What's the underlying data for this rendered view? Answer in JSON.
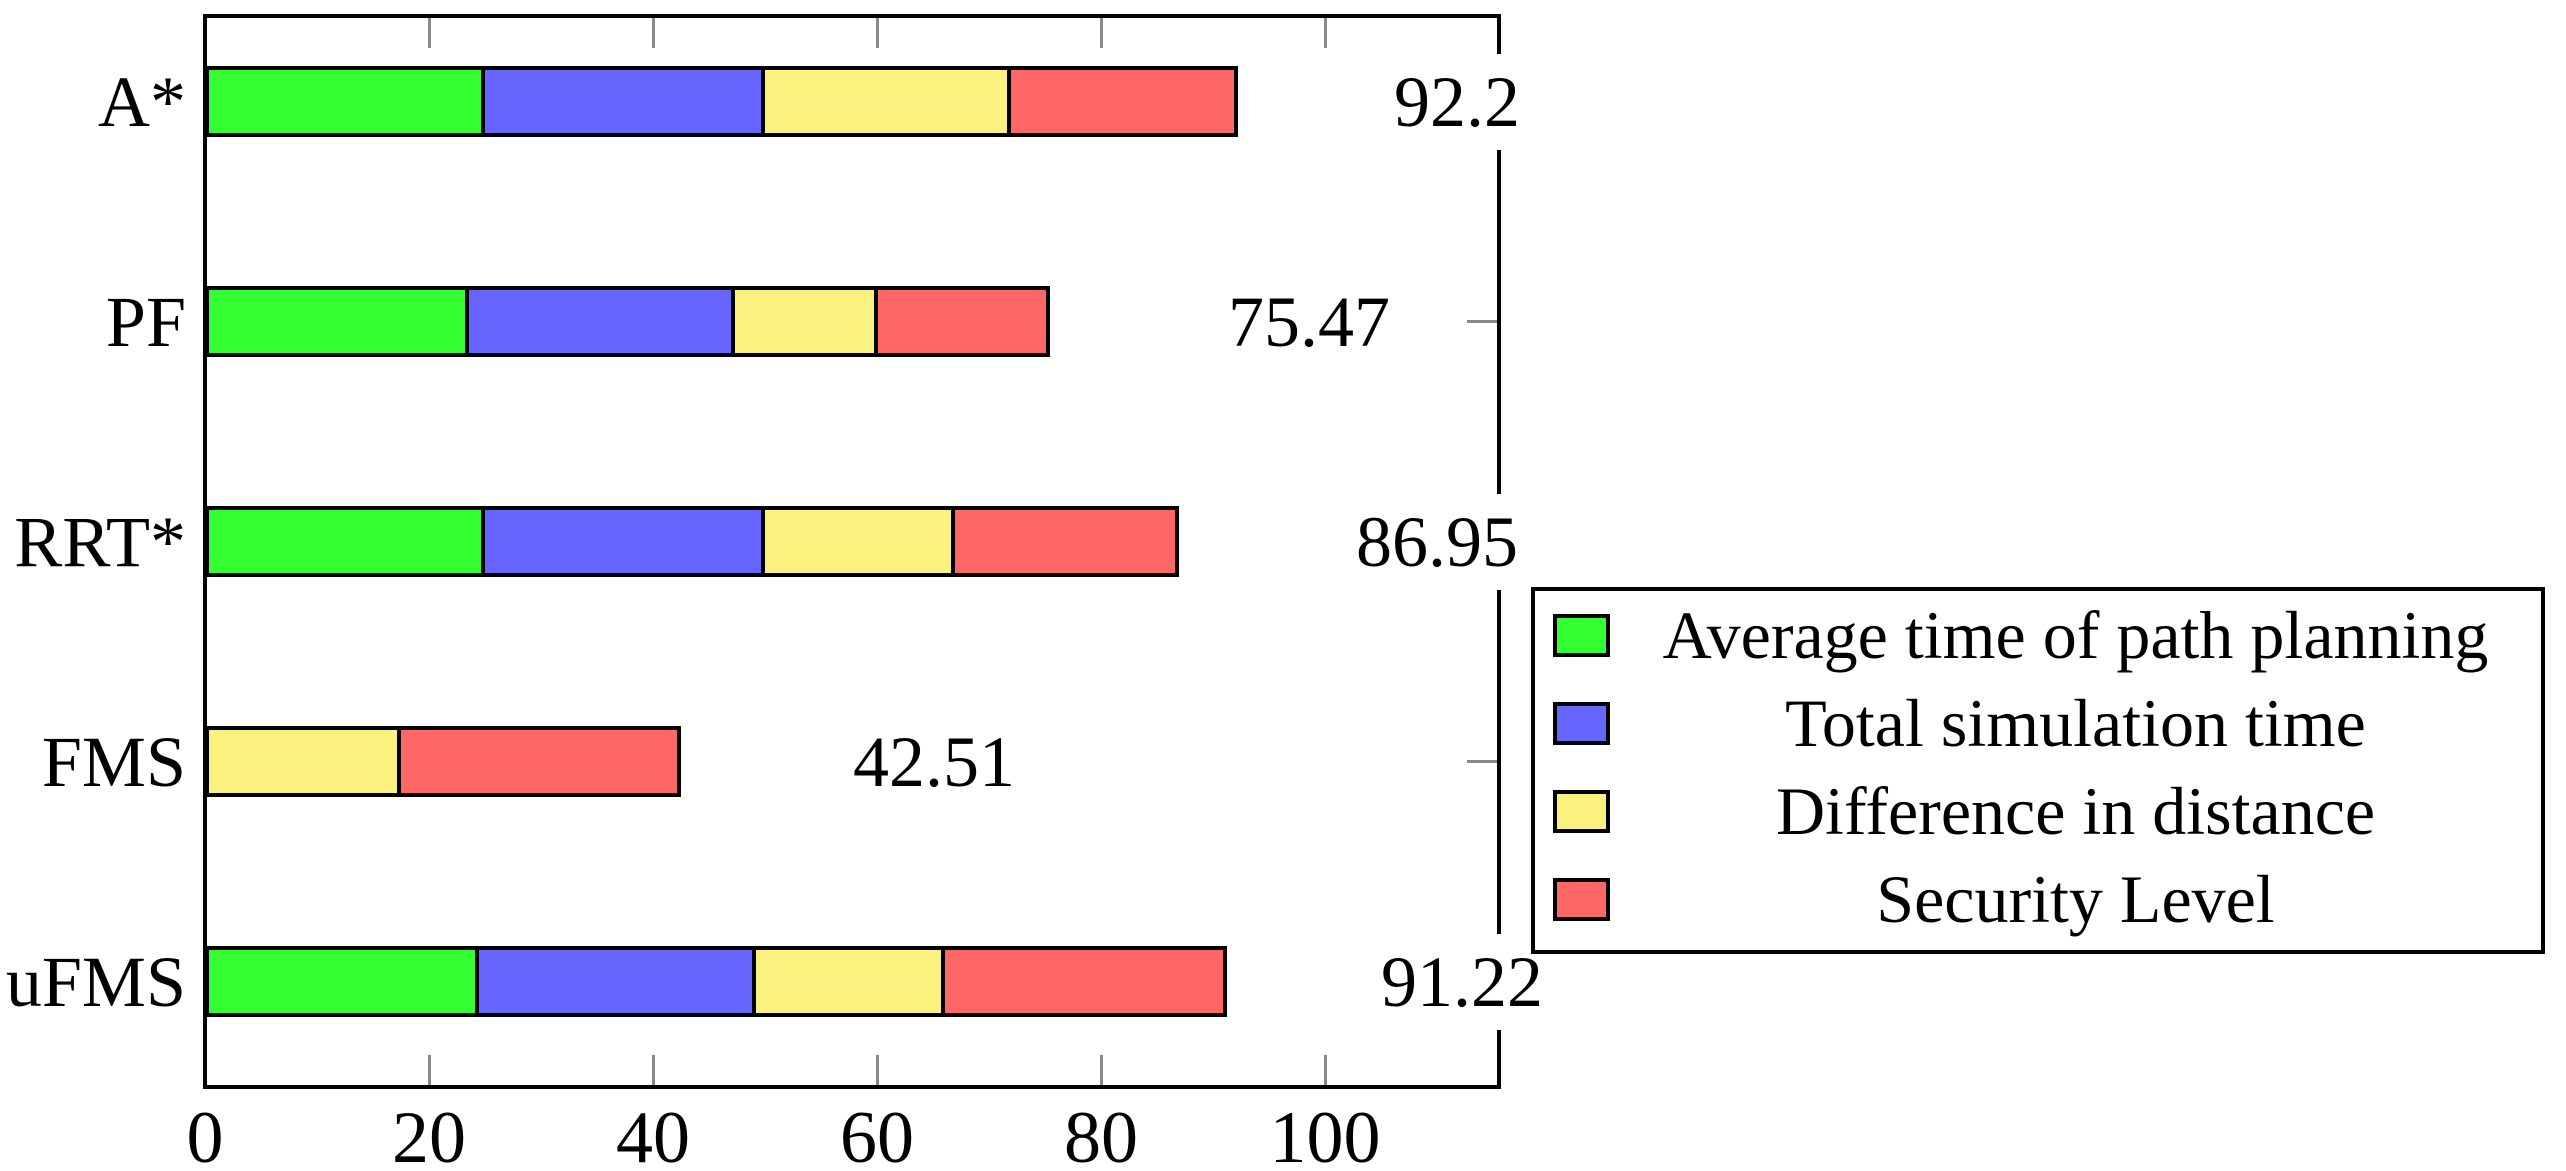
{
  "chart_data": {
    "type": "bar",
    "variant": "horizontal-stacked",
    "title": "",
    "xlabel": "",
    "ylabel": "",
    "grid": false,
    "categories": [
      "A*",
      "PF",
      "RRT*",
      "FMS",
      "uFMS"
    ],
    "series": [
      {
        "name": "Average time of path planning",
        "color": "#33FF33",
        "values": [
          25.0,
          23.6,
          25.0,
          0,
          24.5
        ]
      },
      {
        "name": "Total simulation time",
        "color": "#6666FF",
        "values": [
          25.0,
          23.7,
          25.0,
          0,
          24.7
        ]
      },
      {
        "name": "Difference in distance",
        "color": "#FAF17E",
        "values": [
          22.0,
          12.8,
          16.95,
          17.51,
          16.9
        ]
      },
      {
        "name": "Security Level",
        "color": "#FF6666",
        "values": [
          20.2,
          15.37,
          20.0,
          25.0,
          25.12
        ]
      }
    ],
    "totals": [
      92.2,
      75.47,
      86.95,
      42.51,
      91.22
    ],
    "total_labels": [
      "92.2",
      "75.47",
      "86.95",
      "42.51",
      "91.22"
    ],
    "total_label_x": [
      111.8,
      98.6,
      110.0,
      65.1,
      112.2
    ],
    "x_ticks": [
      0,
      20,
      40,
      60,
      80,
      100
    ],
    "x_tick_labels": [
      "0",
      "20",
      "40",
      "60",
      "80",
      "100"
    ],
    "xlim": [
      0,
      115.5
    ],
    "legend_position": "right-middle",
    "legend_entries": [
      "Average time of path planning",
      "Total simulation time",
      "Difference in distance",
      "Security Level"
    ],
    "axis_color": "#000000",
    "tick_color": "#888888",
    "background_color": "#FFFFFF"
  }
}
